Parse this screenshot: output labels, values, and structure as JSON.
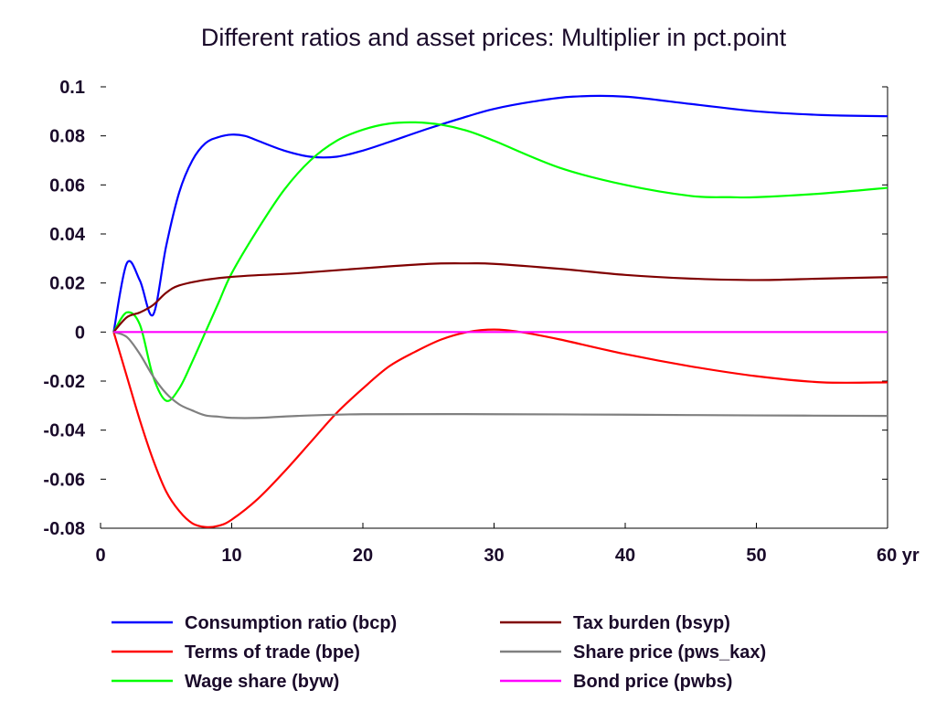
{
  "chart_data": {
    "type": "line",
    "title": "Different ratios and asset prices: Multiplier in pct.point",
    "xlim": [
      0,
      60
    ],
    "ylim": [
      -0.08,
      0.1
    ],
    "x_ticks": [
      {
        "value": 0,
        "label": "0"
      },
      {
        "value": 10,
        "label": "10"
      },
      {
        "value": 20,
        "label": "20"
      },
      {
        "value": 30,
        "label": "30"
      },
      {
        "value": 40,
        "label": "40"
      },
      {
        "value": 50,
        "label": "50"
      },
      {
        "value": 60,
        "label": "60 yr"
      }
    ],
    "y_ticks": [
      {
        "value": 0.1,
        "label": "0.1"
      },
      {
        "value": 0.08,
        "label": "0.08"
      },
      {
        "value": 0.06,
        "label": "0.06"
      },
      {
        "value": 0.04,
        "label": "0.04"
      },
      {
        "value": 0.02,
        "label": "0.02"
      },
      {
        "value": 0,
        "label": "0"
      },
      {
        "value": -0.02,
        "label": "-0.02"
      },
      {
        "value": -0.04,
        "label": "-0.04"
      },
      {
        "value": -0.06,
        "label": "-0.06"
      },
      {
        "value": -0.08,
        "label": "-0.08"
      }
    ],
    "grid": false,
    "legend_position": "bottom",
    "series": [
      {
        "name": "Consumption ratio (bcp)",
        "color": "#0000ff",
        "points": [
          [
            1,
            0
          ],
          [
            2,
            0.028
          ],
          [
            3,
            0.021
          ],
          [
            4,
            0.007
          ],
          [
            5,
            0.035
          ],
          [
            6,
            0.057
          ],
          [
            7,
            0.07
          ],
          [
            8,
            0.077
          ],
          [
            9,
            0.0795
          ],
          [
            10,
            0.0805
          ],
          [
            11,
            0.08
          ],
          [
            12,
            0.078
          ],
          [
            14,
            0.074
          ],
          [
            16,
            0.0715
          ],
          [
            18,
            0.0715
          ],
          [
            20,
            0.074
          ],
          [
            22,
            0.0775
          ],
          [
            25,
            0.083
          ],
          [
            28,
            0.088
          ],
          [
            30,
            0.091
          ],
          [
            33,
            0.094
          ],
          [
            36,
            0.096
          ],
          [
            40,
            0.096
          ],
          [
            45,
            0.093
          ],
          [
            50,
            0.09
          ],
          [
            55,
            0.0885
          ],
          [
            60,
            0.088
          ]
        ]
      },
      {
        "name": "Terms of trade (bpe)",
        "color": "#ff0000",
        "points": [
          [
            1,
            0
          ],
          [
            2,
            -0.018
          ],
          [
            3,
            -0.036
          ],
          [
            4,
            -0.052
          ],
          [
            5,
            -0.065
          ],
          [
            6,
            -0.073
          ],
          [
            7,
            -0.078
          ],
          [
            8,
            -0.0795
          ],
          [
            9,
            -0.079
          ],
          [
            10,
            -0.0765
          ],
          [
            12,
            -0.068
          ],
          [
            14,
            -0.057
          ],
          [
            16,
            -0.045
          ],
          [
            18,
            -0.033
          ],
          [
            20,
            -0.023
          ],
          [
            22,
            -0.014
          ],
          [
            24,
            -0.008
          ],
          [
            26,
            -0.003
          ],
          [
            28,
            0
          ],
          [
            30,
            0.001
          ],
          [
            32,
            0
          ],
          [
            35,
            -0.003
          ],
          [
            40,
            -0.009
          ],
          [
            45,
            -0.014
          ],
          [
            50,
            -0.018
          ],
          [
            55,
            -0.0205
          ],
          [
            60,
            -0.0205
          ]
        ]
      },
      {
        "name": "Wage share (byw)",
        "color": "#00ff00",
        "points": [
          [
            1,
            0
          ],
          [
            2,
            0.008
          ],
          [
            3,
            0.003
          ],
          [
            4,
            -0.018
          ],
          [
            5,
            -0.028
          ],
          [
            6,
            -0.023
          ],
          [
            7,
            -0.012
          ],
          [
            8,
            0
          ],
          [
            9,
            0.012
          ],
          [
            10,
            0.024
          ],
          [
            12,
            0.042
          ],
          [
            14,
            0.058
          ],
          [
            16,
            0.07
          ],
          [
            18,
            0.078
          ],
          [
            20,
            0.0825
          ],
          [
            22,
            0.085
          ],
          [
            24,
            0.0855
          ],
          [
            26,
            0.0845
          ],
          [
            28,
            0.082
          ],
          [
            30,
            0.078
          ],
          [
            35,
            0.067
          ],
          [
            40,
            0.06
          ],
          [
            45,
            0.0555
          ],
          [
            48,
            0.055
          ],
          [
            50,
            0.055
          ],
          [
            55,
            0.0565
          ],
          [
            60,
            0.0588
          ]
        ]
      },
      {
        "name": "Tax burden (bsyp)",
        "color": "#800000",
        "points": [
          [
            1,
            0
          ],
          [
            2,
            0.006
          ],
          [
            3,
            0.008
          ],
          [
            4,
            0.011
          ],
          [
            5,
            0.016
          ],
          [
            6,
            0.019
          ],
          [
            8,
            0.0213
          ],
          [
            10,
            0.0225
          ],
          [
            12,
            0.0232
          ],
          [
            15,
            0.024
          ],
          [
            20,
            0.026
          ],
          [
            25,
            0.0278
          ],
          [
            28,
            0.028
          ],
          [
            30,
            0.0278
          ],
          [
            35,
            0.0258
          ],
          [
            40,
            0.0233
          ],
          [
            45,
            0.0218
          ],
          [
            50,
            0.0212
          ],
          [
            55,
            0.0218
          ],
          [
            60,
            0.0224
          ]
        ]
      },
      {
        "name": "Share price (pws_kax)",
        "color": "#808080",
        "points": [
          [
            1,
            0
          ],
          [
            2,
            -0.002
          ],
          [
            3,
            -0.009
          ],
          [
            4,
            -0.018
          ],
          [
            5,
            -0.025
          ],
          [
            6,
            -0.0295
          ],
          [
            7,
            -0.032
          ],
          [
            8,
            -0.034
          ],
          [
            9,
            -0.0345
          ],
          [
            10,
            -0.035
          ],
          [
            12,
            -0.035
          ],
          [
            15,
            -0.0342
          ],
          [
            20,
            -0.0335
          ],
          [
            30,
            -0.0335
          ],
          [
            40,
            -0.0337
          ],
          [
            50,
            -0.034
          ],
          [
            60,
            -0.0342
          ]
        ]
      },
      {
        "name": "Bond price (pwbs)",
        "color": "#ff00ff",
        "points": [
          [
            1,
            0
          ],
          [
            60,
            0
          ]
        ]
      }
    ]
  }
}
